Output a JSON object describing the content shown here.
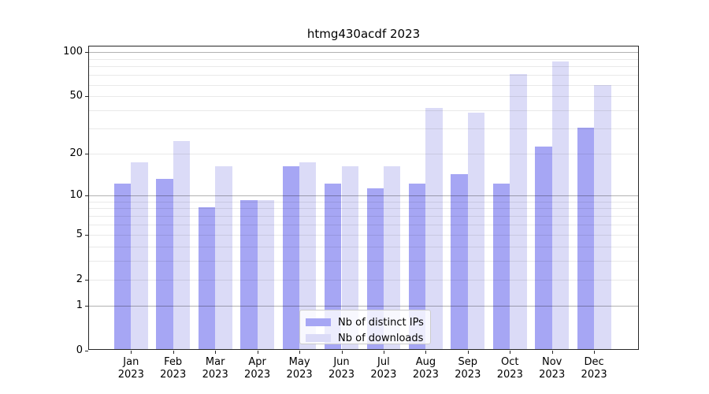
{
  "title": "htmg430acdf 2023",
  "chart_data": {
    "type": "bar",
    "title": "htmg430acdf 2023",
    "categories": [
      "Jan",
      "Feb",
      "Mar",
      "Apr",
      "May",
      "Jun",
      "Jul",
      "Aug",
      "Sep",
      "Oct",
      "Nov",
      "Dec"
    ],
    "category_year": "2023",
    "series": [
      {
        "name": "Nb of distinct IPs",
        "color": "#a6a6f4",
        "values": [
          12,
          13,
          8,
          9,
          16,
          12,
          11,
          12,
          14,
          12,
          22,
          30
        ]
      },
      {
        "name": "Nb of downloads",
        "color": "#dbdbf7",
        "values": [
          17,
          24,
          16,
          9,
          17,
          16,
          16,
          41,
          38,
          70,
          85,
          59
        ]
      }
    ],
    "yscale": "log1p",
    "ylim": [
      0,
      100
    ],
    "yticks": [
      0,
      1,
      2,
      5,
      10,
      20,
      50,
      100
    ],
    "ytick_labels": [
      "0",
      "1",
      "2",
      "5",
      "10",
      "20",
      "50",
      "100"
    ],
    "major_gridlines": [
      1,
      10,
      100
    ],
    "minor_gridlines": [
      2,
      3,
      4,
      5,
      6,
      7,
      8,
      9,
      20,
      30,
      40,
      50,
      60,
      70,
      80,
      90
    ],
    "grid": true,
    "legend_position": "lower center"
  },
  "colors": {
    "background": "#ffffff",
    "spine": "#262626",
    "grid_major": "#b3b3b3",
    "grid_minor": "#e9e9e9",
    "bar_distinct_ips": "#a6a6f4",
    "bar_downloads": "#dbdbf7"
  }
}
